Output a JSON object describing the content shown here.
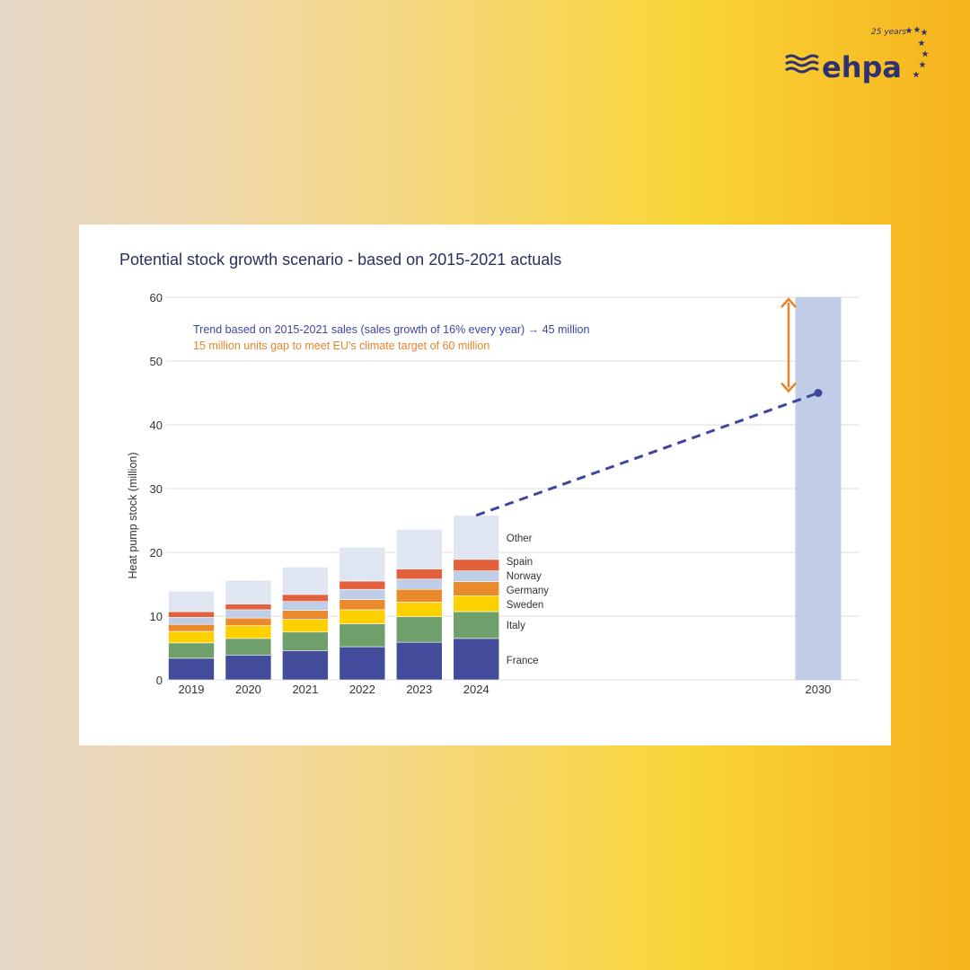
{
  "logo": {
    "text": "ehpa",
    "badge": "25 years"
  },
  "chart_data": {
    "type": "bar",
    "stacked": true,
    "title": "Potential stock growth scenario - based on 2015-2021 actuals",
    "xlabel": "",
    "ylabel": "Heat pump stock (million)",
    "ylim": [
      0,
      60
    ],
    "yticks": [
      0,
      10,
      20,
      30,
      40,
      50,
      60
    ],
    "grid": true,
    "categories": [
      "2019",
      "2020",
      "2021",
      "2022",
      "2023",
      "2024"
    ],
    "series": [
      {
        "name": "France",
        "color": "#434b9b",
        "values": [
          3.4,
          3.9,
          4.6,
          5.2,
          5.9,
          6.5
        ]
      },
      {
        "name": "Italy",
        "color": "#6f9f6a",
        "values": [
          2.4,
          2.6,
          2.9,
          3.6,
          4.0,
          4.2
        ]
      },
      {
        "name": "Sweden",
        "color": "#fdd100",
        "values": [
          1.8,
          2.0,
          2.0,
          2.2,
          2.3,
          2.5
        ]
      },
      {
        "name": "Germany",
        "color": "#e98b2c",
        "values": [
          1.1,
          1.2,
          1.4,
          1.6,
          2.0,
          2.2
        ]
      },
      {
        "name": "Norway",
        "color": "#c0cde6",
        "values": [
          1.1,
          1.3,
          1.4,
          1.6,
          1.6,
          1.7
        ]
      },
      {
        "name": "Spain",
        "color": "#e2603c",
        "values": [
          0.9,
          0.9,
          1.1,
          1.3,
          1.6,
          1.8
        ]
      },
      {
        "name": "Other",
        "color": "#dfe6f2",
        "values": [
          3.2,
          3.7,
          4.3,
          5.3,
          6.2,
          6.9
        ]
      }
    ],
    "target": {
      "category": "2030",
      "value": 60,
      "color": "#c1cde6"
    },
    "trend": {
      "from_year": "2024",
      "from_value": 25.8,
      "to_year": "2030",
      "to_value": 45,
      "color": "#3f46a0"
    },
    "gap_arrow": {
      "from": 60,
      "to": 45,
      "color": "#e8832a"
    },
    "annotations": [
      "Trend based on 2015-2021 sales (sales growth of 16% every year) → 45 million",
      "15 million units gap to meet EU's climate target of 60 million"
    ]
  }
}
